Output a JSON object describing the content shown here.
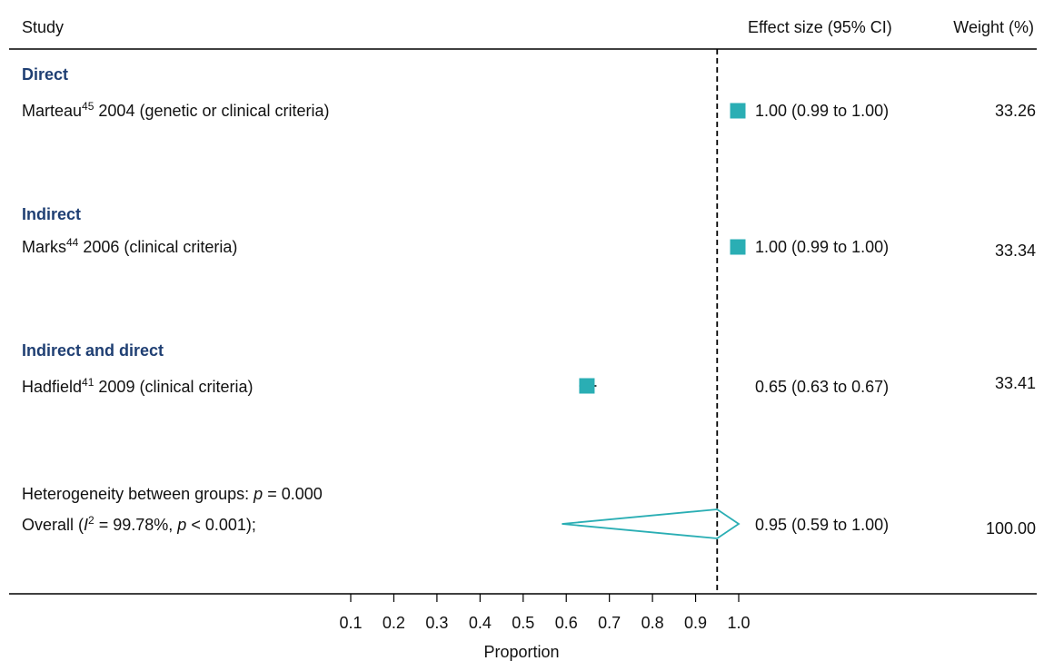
{
  "chart_data": {
    "type": "forest",
    "headers": {
      "study": "Study",
      "effect": "Effect size (95% CI)",
      "weight": "Weight (%)"
    },
    "xlabel": "Proportion",
    "xlim": [
      0.1,
      1.0
    ],
    "ticks": [
      "0.1",
      "0.2",
      "0.3",
      "0.4",
      "0.5",
      "0.6",
      "0.7",
      "0.8",
      "0.9",
      "1.0"
    ],
    "reference_line": 0.95,
    "groups": [
      {
        "name": "Direct",
        "studies": [
          {
            "author": "Marteau",
            "ref": "45",
            "rest": " 2004 (genetic or clinical criteria)",
            "es": 1.0,
            "lo": 0.99,
            "hi": 1.0,
            "ci_text": "1.00 (0.99 to 1.00)",
            "weight": "33.26"
          }
        ]
      },
      {
        "name": "Indirect",
        "studies": [
          {
            "author": "Marks",
            "ref": "44",
            "rest": " 2006 (clinical criteria)",
            "es": 1.0,
            "lo": 0.99,
            "hi": 1.0,
            "ci_text": "1.00 (0.99 to 1.00)",
            "weight": "33.34"
          }
        ]
      },
      {
        "name": "Indirect and direct",
        "studies": [
          {
            "author": "Hadfield",
            "ref": "41",
            "rest": " 2009 (clinical criteria)",
            "es": 0.65,
            "lo": 0.63,
            "hi": 0.67,
            "ci_text": "0.65 (0.63 to 0.67)",
            "weight": "33.41"
          }
        ]
      }
    ],
    "heterogeneity": {
      "prefix": "Heterogeneity between groups: ",
      "p_symbol": "p",
      "eq": " = ",
      "value": "0.000"
    },
    "overall": {
      "prefix": "Overall (",
      "i_symbol": "I",
      "i_sup": "2",
      "i_value": " = 99.78%, ",
      "p_symbol": "p",
      "p_value": " < 0.001);",
      "es": 0.95,
      "lo": 0.59,
      "hi": 1.0,
      "ci_text": "0.95 (0.59 to 1.00)",
      "weight": "100.00"
    },
    "colors": {
      "marker": "#2aaeb4",
      "heading": "#1f3f73",
      "text": "#111111",
      "line": "#000000"
    }
  }
}
